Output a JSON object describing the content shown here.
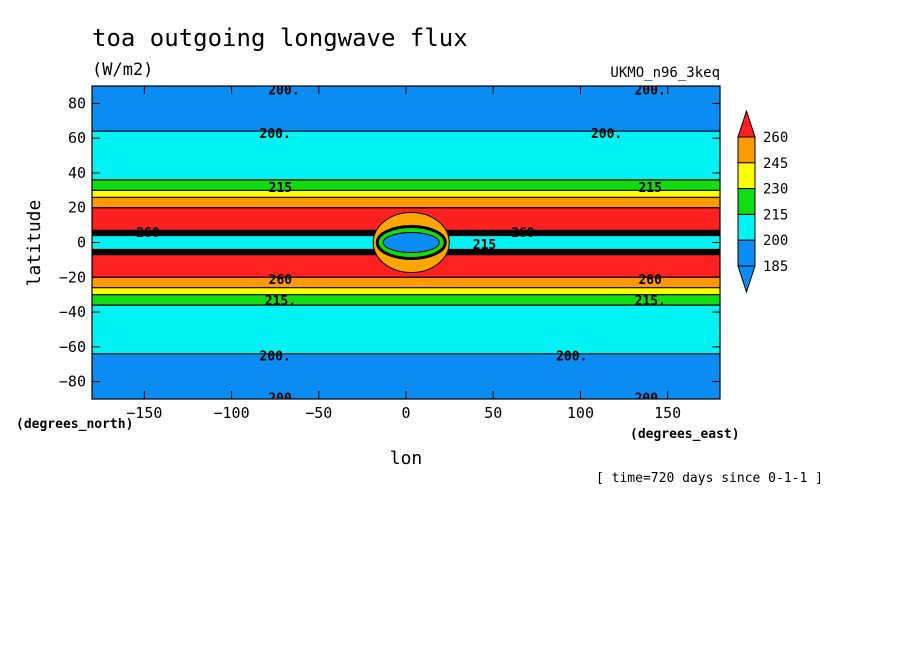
{
  "chart_data": {
    "type": "contour",
    "title": "toa outgoing longwave flux",
    "units": "(W/m2)",
    "dataset": "UKMO_n96_3keq",
    "xlabel": "lon",
    "ylabel": "latitude",
    "x_units": "(degrees_east)",
    "y_units": "(degrees_north)",
    "time_note": "[ time=720 days since 0-1-1 ]",
    "xlim": [
      -180,
      180
    ],
    "ylim": [
      -90,
      90
    ],
    "x_ticks": [
      -150,
      -100,
      -50,
      0,
      50,
      100,
      150
    ],
    "y_ticks": [
      80,
      60,
      40,
      20,
      0,
      -20,
      -40,
      -60,
      -80
    ],
    "color_levels": [
      185,
      200,
      215,
      230,
      245,
      260
    ],
    "level_colors": [
      "#0a8cf2",
      "#00f2f2",
      "#12dc12",
      "#ffff00",
      "#ff9900",
      "#ff2020"
    ],
    "below_color": "#0a8cf2",
    "above_color": "#ff2020",
    "band_fill": [
      {
        "lat_from": 90,
        "lat_to": 64,
        "value": "185-200"
      },
      {
        "lat_from": 64,
        "lat_to": 36,
        "value": "200-215"
      },
      {
        "lat_from": 36,
        "lat_to": 30,
        "value": "215-230"
      },
      {
        "lat_from": 30,
        "lat_to": 26,
        "value": "230-245"
      },
      {
        "lat_from": 26,
        "lat_to": 20,
        "value": "245-260"
      },
      {
        "lat_from": 20,
        "lat_to": 7,
        "value": ">260"
      },
      {
        "lat_from": 7,
        "lat_to": 4,
        "value": "dense contours"
      },
      {
        "lat_from": 4,
        "lat_to": -4,
        "value": "200-215"
      },
      {
        "lat_from": -4,
        "lat_to": -7,
        "value": "dense contours"
      },
      {
        "lat_from": -7,
        "lat_to": -20,
        "value": ">260"
      },
      {
        "lat_from": -20,
        "lat_to": -26,
        "value": "245-260"
      },
      {
        "lat_from": -26,
        "lat_to": -30,
        "value": "230-245"
      },
      {
        "lat_from": -30,
        "lat_to": -36,
        "value": "215-230"
      },
      {
        "lat_from": -36,
        "lat_to": -64,
        "value": "200-215"
      },
      {
        "lat_from": -64,
        "lat_to": -90,
        "value": "185-200"
      }
    ],
    "features": [
      {
        "type": "minimum",
        "lon": 3,
        "lat": 0,
        "value": "<185"
      }
    ],
    "contour_labels": [
      {
        "text": "200.",
        "lon": -70,
        "lat": 88
      },
      {
        "text": "200.",
        "lon": 140,
        "lat": 88
      },
      {
        "text": "200.",
        "lon": -75,
        "lat": 63
      },
      {
        "text": "200.",
        "lon": 115,
        "lat": 63
      },
      {
        "text": "215",
        "lon": -72,
        "lat": 32
      },
      {
        "text": "215",
        "lon": 140,
        "lat": 32
      },
      {
        "text": "260",
        "lon": -148,
        "lat": 6
      },
      {
        "text": "260",
        "lon": 67,
        "lat": 6
      },
      {
        "text": "215",
        "lon": 45,
        "lat": -1
      },
      {
        "text": "260",
        "lon": -72,
        "lat": -21
      },
      {
        "text": "260",
        "lon": 140,
        "lat": -21
      },
      {
        "text": "215.",
        "lon": -72,
        "lat": -33
      },
      {
        "text": "215.",
        "lon": 140,
        "lat": -33
      },
      {
        "text": "200.",
        "lon": -75,
        "lat": -65
      },
      {
        "text": "200.",
        "lon": 95,
        "lat": -65
      },
      {
        "text": "200.",
        "lon": -70,
        "lat": -89
      },
      {
        "text": "200.",
        "lon": 140,
        "lat": -89
      }
    ]
  }
}
